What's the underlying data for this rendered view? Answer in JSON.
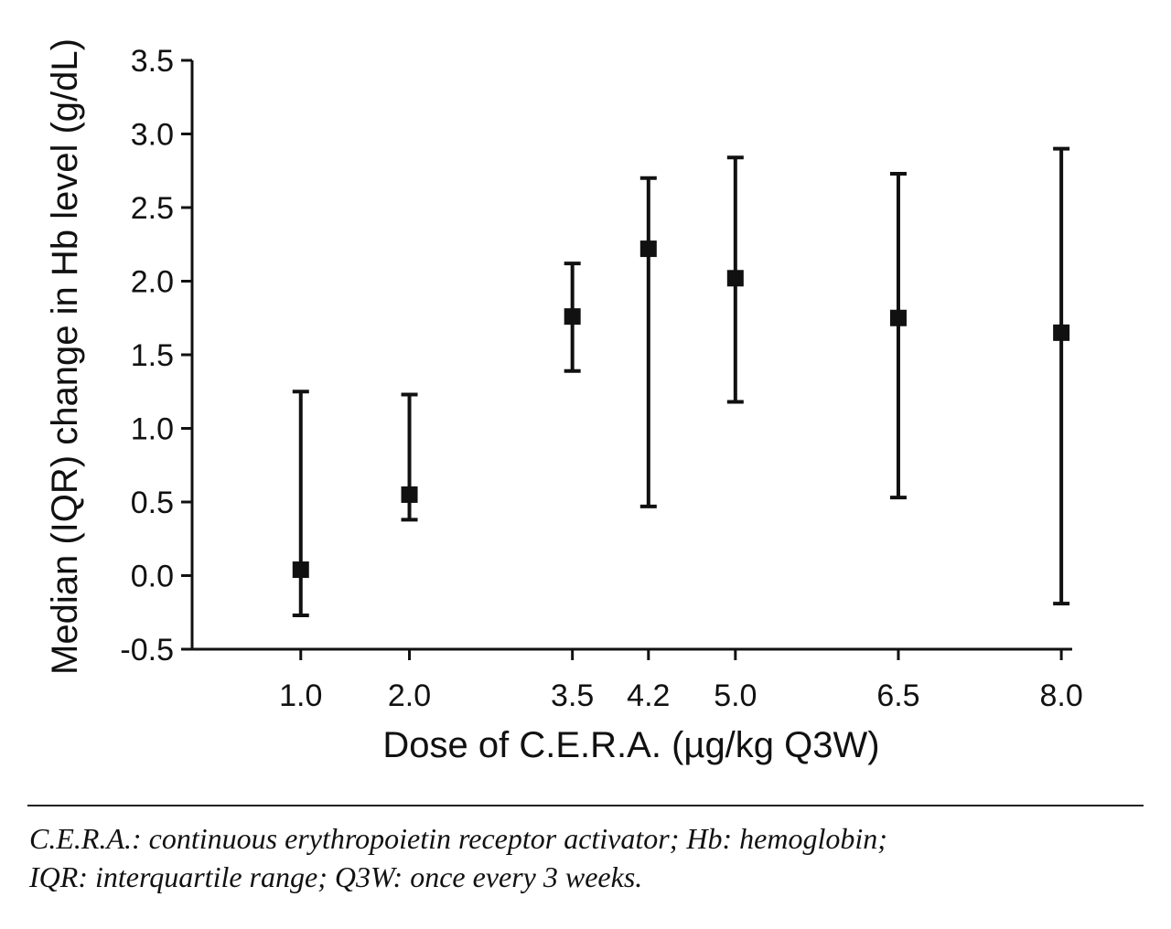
{
  "chart_data": {
    "type": "scatter",
    "xlabel": "Dose of C.E.R.A. (µg/kg Q3W)",
    "ylabel": "Median (IQR) change in Hb level (g/dL)",
    "xlim": [
      0.0,
      8.1
    ],
    "ylim": [
      -0.5,
      3.5
    ],
    "yticks": [
      "-0.5",
      "0.0",
      "0.5",
      "1.0",
      "1.5",
      "2.0",
      "2.5",
      "3.0",
      "3.5"
    ],
    "xticks": [
      "1.0",
      "2.0",
      "3.5",
      "4.2",
      "5.0",
      "6.5",
      "8.0"
    ],
    "grid": false,
    "points": [
      {
        "x": 1.0,
        "median": 0.04,
        "q1": -0.27,
        "q3": 1.25
      },
      {
        "x": 2.0,
        "median": 0.55,
        "q1": 0.38,
        "q3": 1.23
      },
      {
        "x": 3.5,
        "median": 1.76,
        "q1": 1.39,
        "q3": 2.12
      },
      {
        "x": 4.2,
        "median": 2.22,
        "q1": 0.47,
        "q3": 2.7
      },
      {
        "x": 5.0,
        "median": 2.02,
        "q1": 1.18,
        "q3": 2.84
      },
      {
        "x": 6.5,
        "median": 1.75,
        "q1": 0.53,
        "q3": 2.73
      },
      {
        "x": 8.0,
        "median": 1.65,
        "q1": -0.19,
        "q3": 2.9
      }
    ],
    "marker_color": "#111111"
  },
  "footnote": {
    "line1": "C.E.R.A.: continuous erythropoietin receptor activator; Hb: hemoglobin;",
    "line2": "IQR: interquartile range; Q3W: once every 3 weeks."
  }
}
